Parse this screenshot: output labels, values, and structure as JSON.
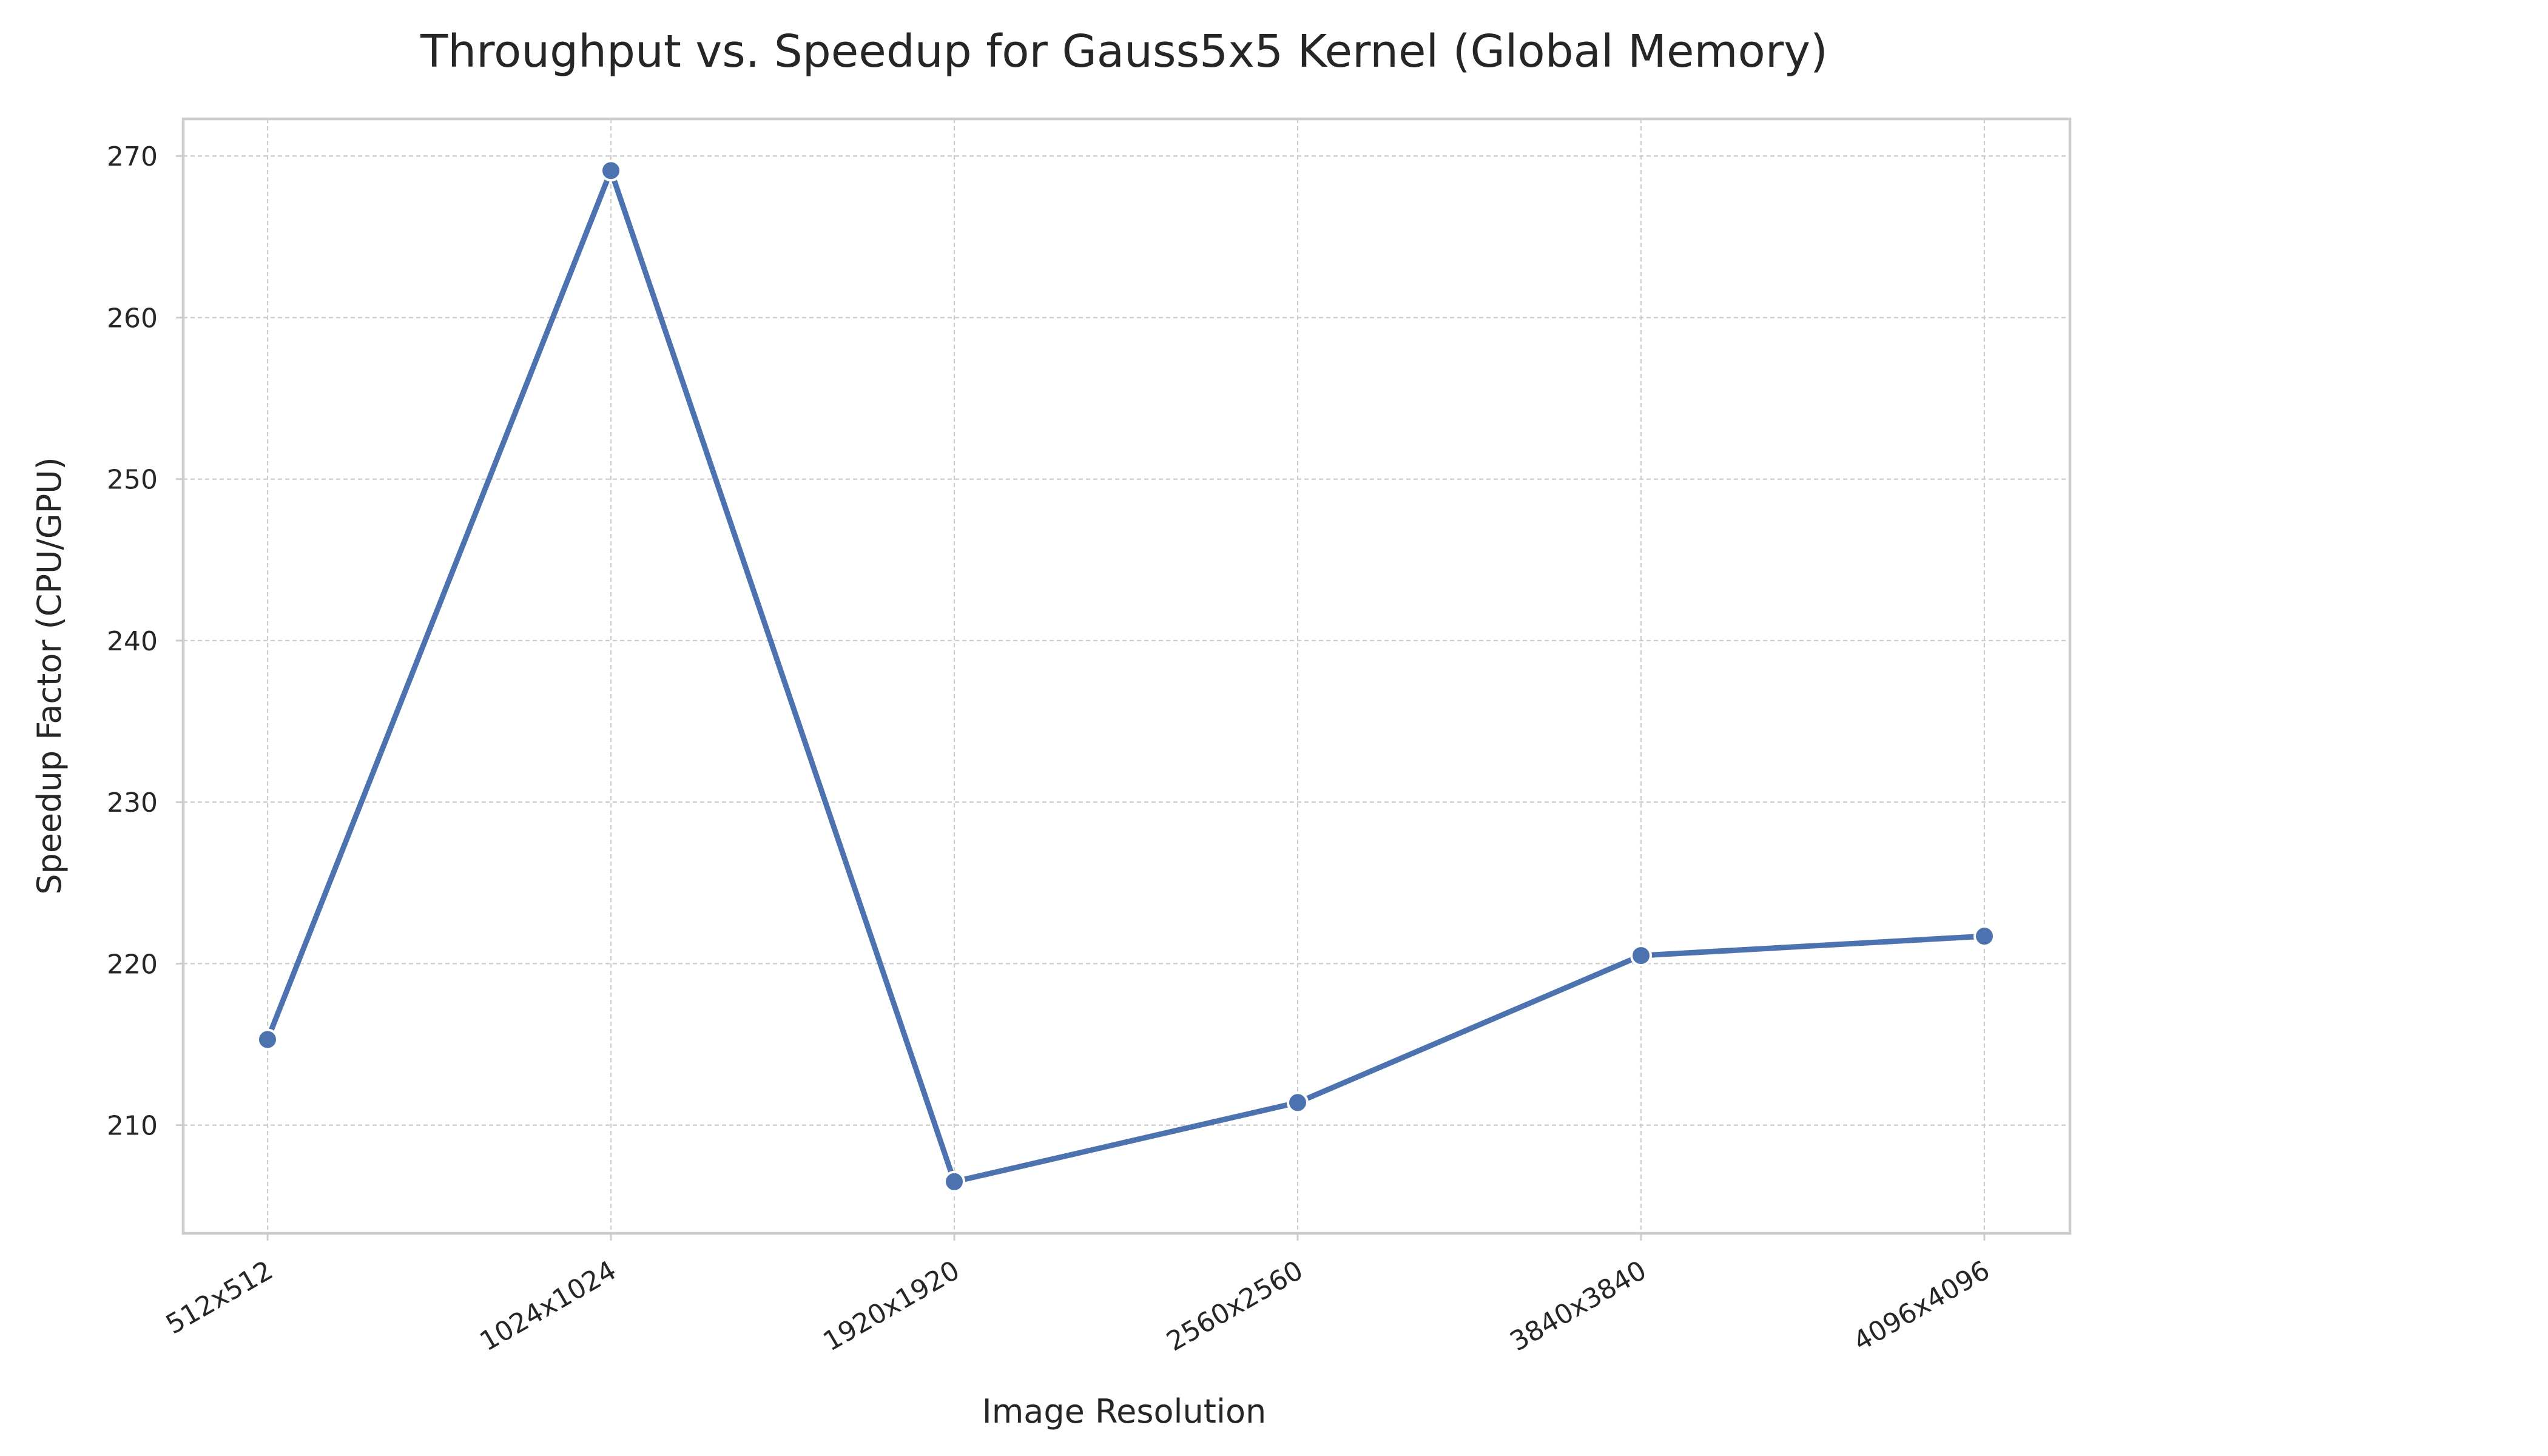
{
  "chart_data": {
    "type": "line",
    "title": "Throughput vs. Speedup for Gauss5x5 Kernel (Global Memory)",
    "xlabel": "Image Resolution",
    "ylabel": "Speedup Factor (CPU/GPU)",
    "categories": [
      "512x512",
      "1024x1024",
      "1920x1920",
      "2560x2560",
      "3840x3840",
      "4096x4096"
    ],
    "series": [
      {
        "values": [
          215.3,
          269.1,
          206.5,
          211.4,
          220.5,
          221.7
        ],
        "color": "#4c72b0"
      }
    ],
    "yticks": [
      210,
      220,
      230,
      240,
      250,
      260,
      270
    ],
    "ylim": [
      203.3,
      272.3
    ],
    "grid": true,
    "legend": "none"
  }
}
